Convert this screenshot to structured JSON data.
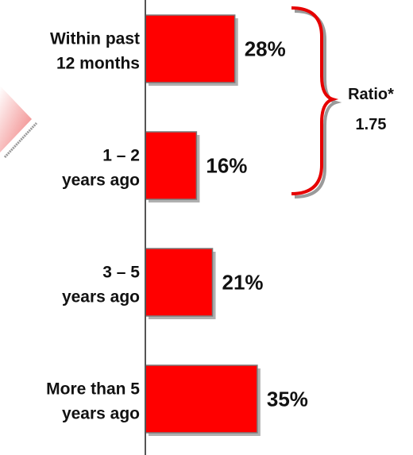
{
  "chart_data": {
    "type": "bar",
    "orientation": "horizontal",
    "categories": [
      [
        "Within past",
        "12 months"
      ],
      [
        "1 – 2",
        "years ago"
      ],
      [
        "3 – 5",
        "years ago"
      ],
      [
        "More than 5",
        "years ago"
      ]
    ],
    "values": [
      28,
      16,
      21,
      35
    ],
    "value_labels": [
      "28%",
      "16%",
      "21%",
      "35%"
    ],
    "value_unit": "%",
    "xlim": [
      0,
      80
    ],
    "bar_color": "#ff0000",
    "bar_edge_color": "#7a7a7a",
    "grid": false,
    "legend": "none",
    "annotation": {
      "text_line1": "Ratio*",
      "text_line2": "1.75",
      "brace_color": "#e60000",
      "spans_categories": [
        0,
        1
      ]
    }
  },
  "colors": {
    "background": "#ffffff",
    "axis": "#555555",
    "text": "#111111",
    "decor_triangle": "#f08080"
  }
}
